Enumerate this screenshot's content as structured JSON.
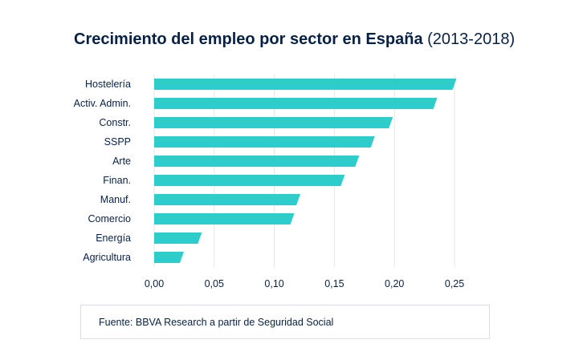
{
  "title": {
    "main": "Crecimiento del empleo por sector en España",
    "period": "(2013-2018)"
  },
  "source": "Fuente: BBVA Research a partir de Seguridad Social",
  "colors": {
    "bar": "#2dcccd",
    "text": "#072146",
    "grid": "#e2e6ea"
  },
  "chart_data": {
    "type": "bar",
    "orientation": "horizontal",
    "categories": [
      "Hostelería",
      "Activ. Admin.",
      "Constr.",
      "SSPP",
      "Arte",
      "Finan.",
      "Manuf.",
      "Comercio",
      "Energía",
      "Agricultura"
    ],
    "values": [
      0.25,
      0.234,
      0.197,
      0.182,
      0.169,
      0.157,
      0.12,
      0.115,
      0.038,
      0.023
    ],
    "xlim": [
      0,
      0.25
    ],
    "xticks": [
      "0,00",
      "0,05",
      "0,10",
      "0,15",
      "0,20",
      "0,25"
    ],
    "xtick_values": [
      0,
      0.05,
      0.1,
      0.15,
      0.2,
      0.25
    ],
    "grid": "vertical"
  }
}
